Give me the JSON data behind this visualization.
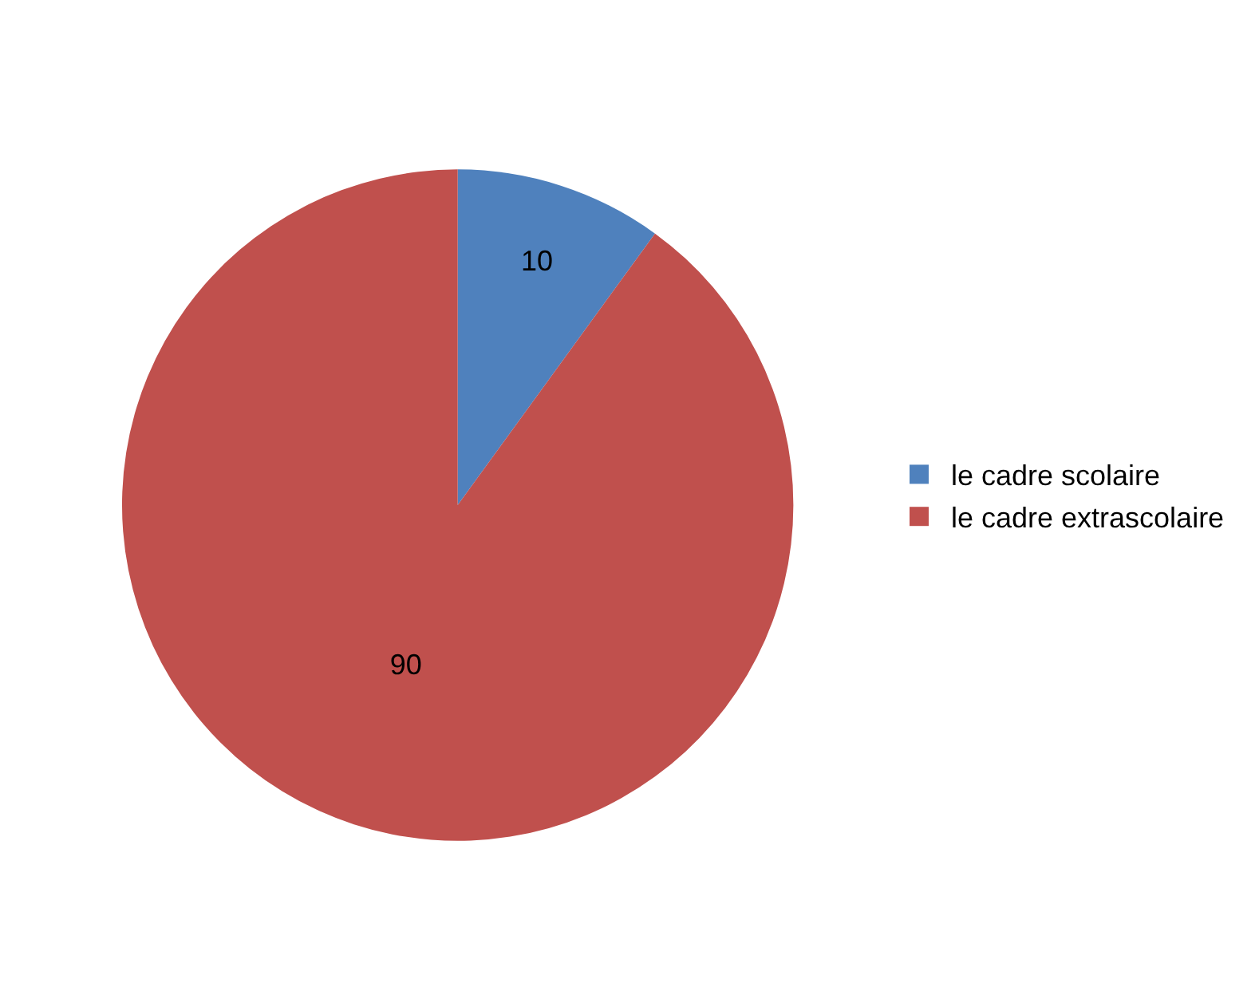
{
  "chart_data": {
    "type": "pie",
    "categories": [
      "le cadre scolaire",
      "le cadre extrascolaire"
    ],
    "values": [
      10,
      90
    ],
    "colors": [
      "#4f81bd",
      "#c0504d"
    ],
    "data_labels": true,
    "legend": "right"
  }
}
